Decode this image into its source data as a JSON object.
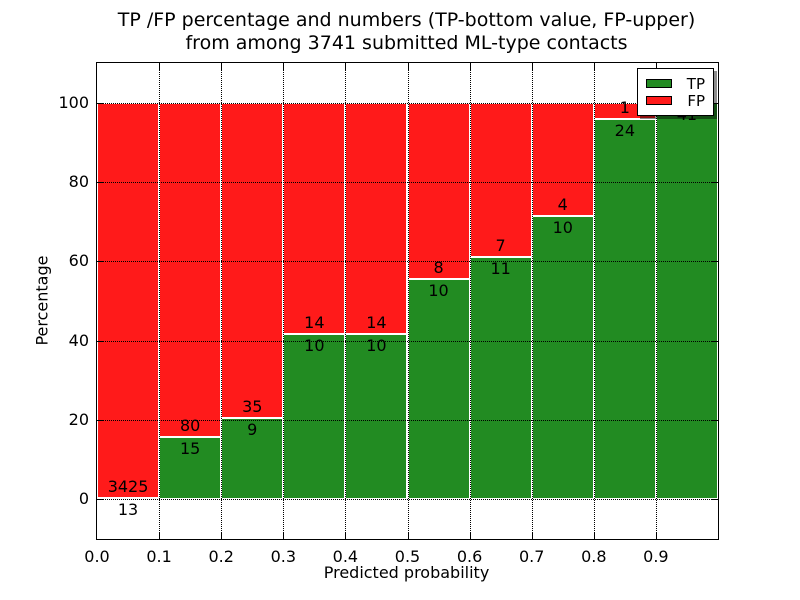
{
  "figure": {
    "title_line1": "TP /FP percentage and numbers (TP-bottom value, FP-upper)",
    "title_line2": "from among 3741 submitted ML-type contacts"
  },
  "chart_data": {
    "type": "bar",
    "subtype": "stacked-percentage-histogram",
    "title": "TP /FP percentage and numbers (TP-bottom value, FP-upper)\nfrom among 3741 submitted ML-type contacts",
    "xlabel": "Predicted probability",
    "ylabel": "Percentage",
    "total_contacts": 3741,
    "xlim": [
      0.0,
      1.0
    ],
    "ylim": [
      -10,
      110
    ],
    "bin_width": 0.1,
    "bin_starts": [
      0.0,
      0.1,
      0.2,
      0.3,
      0.4,
      0.5,
      0.6,
      0.7,
      0.8,
      0.9
    ],
    "xtick_labels": [
      "0.0",
      "0.1",
      "0.2",
      "0.3",
      "0.4",
      "0.5",
      "0.6",
      "0.7",
      "0.8",
      "0.9"
    ],
    "ytick_values": [
      0,
      20,
      40,
      60,
      80,
      100
    ],
    "ytick_labels": [
      "0",
      "20",
      "40",
      "60",
      "80",
      "100"
    ],
    "grid": true,
    "series": [
      {
        "name": "TP",
        "color": "#228b22",
        "counts": [
          13,
          15,
          9,
          10,
          10,
          10,
          11,
          10,
          24,
          41
        ],
        "pct": [
          0.38,
          15.79,
          20.45,
          41.67,
          41.67,
          55.56,
          61.11,
          71.43,
          96.0,
          100.0
        ]
      },
      {
        "name": "FP",
        "color": "#ff1a1a",
        "counts": [
          3425,
          80,
          35,
          14,
          14,
          8,
          7,
          4,
          1,
          0
        ],
        "pct": [
          99.62,
          84.21,
          79.55,
          58.33,
          58.33,
          44.44,
          38.89,
          28.57,
          4.0,
          0.0
        ]
      }
    ],
    "legend": {
      "position": "upper right",
      "entries": [
        {
          "label": "TP",
          "color": "#228b22"
        },
        {
          "label": "FP",
          "color": "#ff1a1a"
        }
      ]
    }
  }
}
